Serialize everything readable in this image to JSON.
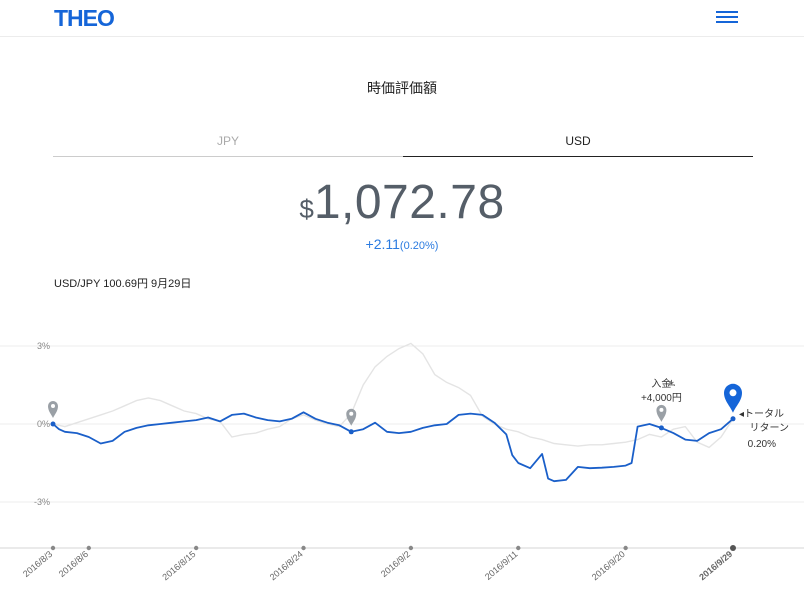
{
  "header": {
    "logo": "THEO",
    "menu_icon": "hamburger-menu-icon"
  },
  "title": "時価評価額",
  "tabs": [
    {
      "label": "JPY",
      "selected": false
    },
    {
      "label": "USD",
      "selected": true
    }
  ],
  "valuation": {
    "currency_symbol": "$",
    "amount": "1,072.78",
    "change": "+2.11",
    "change_pct": "(0.20%)"
  },
  "fx_rate": "USD/JPY 100.69円 9月29日",
  "colors": {
    "accent": "#1565d8",
    "line": "#1a5fc9",
    "ghost": "#e4e4e4"
  },
  "chart_data": {
    "type": "line",
    "ylim": [
      -4.5,
      4.5
    ],
    "ytick_labels": [
      "3%",
      "0%",
      "-3%"
    ],
    "yticks": [
      3,
      0,
      -3
    ],
    "x_labels": [
      "2016/8/3",
      "2016/8/6",
      "2016/8/15",
      "2016/8/24",
      "2016/9/2",
      "2016/9/11",
      "2016/9/20",
      "2016/9/29"
    ],
    "x_label_days": [
      0,
      3,
      12,
      21,
      30,
      39,
      48,
      57
    ],
    "highlight_label": "2016/9/29",
    "series": [
      {
        "role": "return",
        "x_days": [
          0,
          0.5,
          1,
          2,
          3,
          4,
          5,
          6,
          7,
          8,
          9,
          10,
          11,
          12,
          13,
          14,
          15,
          16,
          17,
          18,
          19,
          20,
          21,
          22,
          23,
          24,
          25,
          26,
          27,
          28,
          29,
          30,
          31,
          32,
          33,
          34,
          35,
          36,
          37,
          38,
          38.5,
          39,
          40,
          41,
          41.5,
          42,
          43,
          44,
          45,
          46,
          47,
          48,
          48.5,
          49,
          50,
          51,
          52,
          53,
          54,
          55,
          56,
          57
        ],
        "y": [
          0,
          -0.2,
          -0.3,
          -0.35,
          -0.5,
          -0.75,
          -0.65,
          -0.3,
          -0.15,
          -0.05,
          0,
          0.05,
          0.1,
          0.15,
          0.25,
          0.1,
          0.35,
          0.4,
          0.25,
          0.15,
          0.1,
          0.2,
          0.45,
          0.2,
          0.05,
          -0.05,
          -0.3,
          -0.2,
          0.05,
          -0.3,
          -0.35,
          -0.3,
          -0.15,
          -0.05,
          0,
          0.35,
          0.4,
          0.35,
          0.05,
          -0.4,
          -1.2,
          -1.5,
          -1.7,
          -1.15,
          -2.1,
          -2.2,
          -2.15,
          -1.65,
          -1.7,
          -1.68,
          -1.65,
          -1.6,
          -1.5,
          -0.1,
          0,
          -0.15,
          -0.35,
          -0.6,
          -0.65,
          -0.35,
          -0.2,
          0.2
        ]
      },
      {
        "role": "comparison",
        "x_days": [
          0,
          1,
          2,
          3,
          4,
          5,
          6,
          7,
          8,
          9,
          10,
          11,
          12,
          13,
          14,
          15,
          16,
          17,
          18,
          19,
          20,
          21,
          22,
          23,
          24,
          25,
          26,
          27,
          28,
          29,
          30,
          31,
          32,
          33,
          34,
          35,
          36,
          37,
          38,
          39,
          40,
          41,
          42,
          43,
          44,
          45,
          46,
          47,
          48,
          49,
          50,
          51,
          52,
          53,
          54,
          55,
          56,
          57
        ],
        "y": [
          0,
          -0.1,
          0.05,
          0.2,
          0.35,
          0.5,
          0.7,
          0.9,
          1.0,
          0.9,
          0.7,
          0.5,
          0.4,
          0.2,
          0.1,
          -0.5,
          -0.4,
          -0.35,
          -0.2,
          -0.1,
          0.2,
          0.35,
          0.15,
          0.0,
          -0.1,
          0.4,
          1.5,
          2.2,
          2.6,
          2.9,
          3.1,
          2.7,
          1.9,
          1.6,
          1.4,
          1.1,
          0.3,
          0.0,
          -0.2,
          -0.3,
          -0.5,
          -0.6,
          -0.75,
          -0.8,
          -0.85,
          -0.8,
          -0.8,
          -0.75,
          -0.7,
          -0.6,
          -0.4,
          -0.5,
          -0.2,
          -0.1,
          -0.7,
          -0.9,
          -0.5,
          0.2
        ]
      }
    ],
    "markers": [
      {
        "day": 0,
        "type": "grey-pin"
      },
      {
        "day": 25,
        "type": "grey-pin"
      },
      {
        "day": 51,
        "type": "grey-pin",
        "label_line1": "入金",
        "label_line2": "+4,000円"
      },
      {
        "day": 57,
        "type": "blue-pin",
        "label_line1": "◂トータル",
        "label_line2": "リターン",
        "label_line3": "0.20%"
      }
    ]
  }
}
